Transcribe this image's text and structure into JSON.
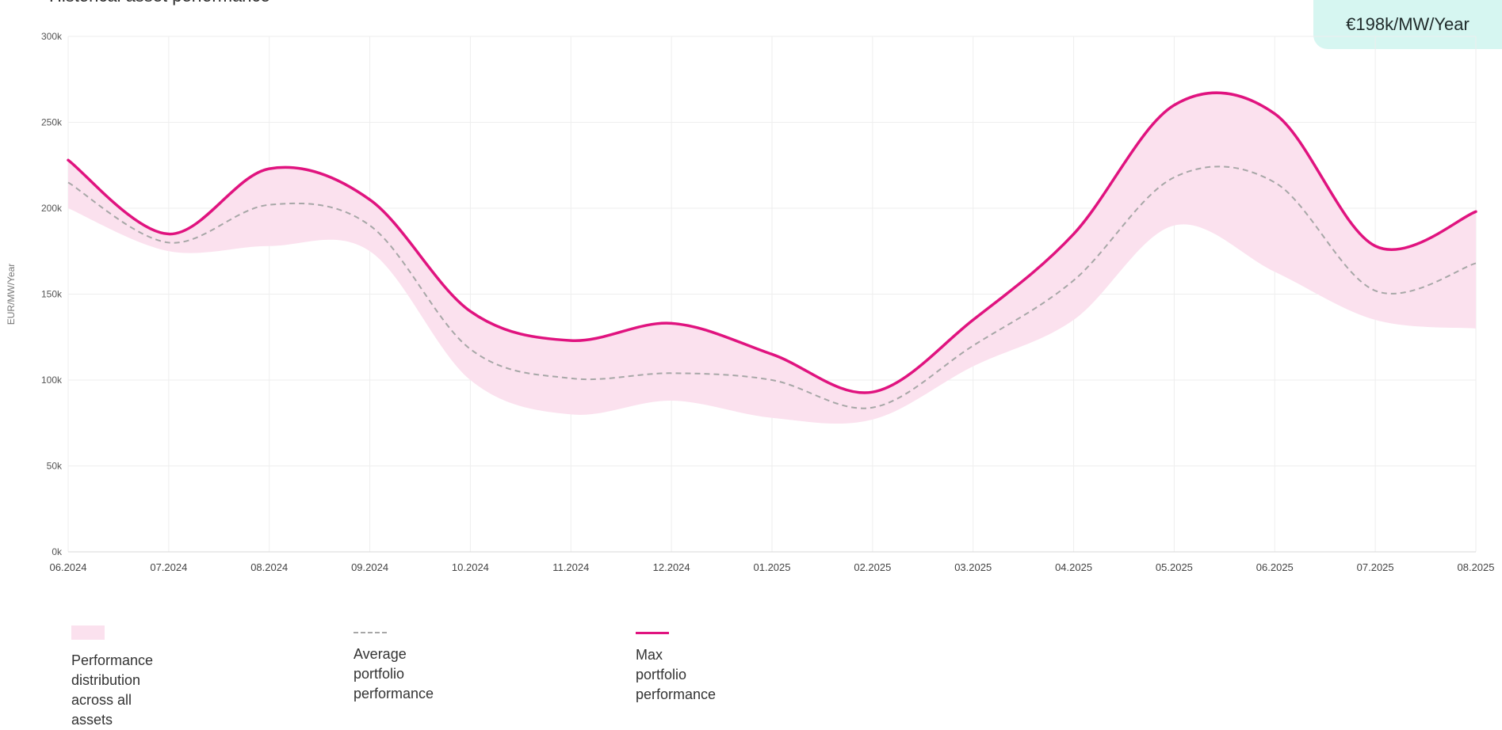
{
  "header": {
    "title": "Historical asset performance",
    "badge": "€198k/MW/Year"
  },
  "legend": {
    "band": "Performance distribution across all assets",
    "band_line1": "Performance distribution",
    "band_line2": "across all assets",
    "avg_line1": "Average portfolio",
    "avg_line2": "performance",
    "max": "Max portfolio performance"
  },
  "colors": {
    "max_line": "#e0137f",
    "band_fill": "#fbe1ee",
    "avg_line": "#a7a7a7",
    "grid": "#eeeeee",
    "badge_bg": "#d6f6f1"
  },
  "chart_data": {
    "type": "area",
    "ylabel": "EUR/MW/Year",
    "xlabel": "",
    "ylim": [
      0,
      300000
    ],
    "yticks": [
      0,
      50000,
      100000,
      150000,
      200000,
      250000,
      300000
    ],
    "ytick_labels": [
      "0k",
      "50k",
      "100k",
      "150k",
      "200k",
      "250k",
      "300k"
    ],
    "categories": [
      "06.2024",
      "07.2024",
      "08.2024",
      "09.2024",
      "10.2024",
      "11.2024",
      "12.2024",
      "01.2025",
      "02.2025",
      "03.2025",
      "04.2025",
      "05.2025",
      "06.2025",
      "07.2025",
      "08.2025"
    ],
    "grid": true,
    "legend_position": "bottom",
    "series": [
      {
        "name": "Max portfolio performance",
        "style": "line",
        "values": [
          228000,
          185000,
          223000,
          205000,
          140000,
          123000,
          133000,
          115000,
          93000,
          135000,
          185000,
          260000,
          255000,
          178000,
          198000
        ]
      },
      {
        "name": "Average portfolio performance",
        "style": "dashed",
        "values": [
          215000,
          180000,
          202000,
          190000,
          118000,
          101000,
          104000,
          100000,
          84000,
          120000,
          158000,
          218000,
          215000,
          152000,
          168000
        ]
      },
      {
        "name": "Performance distribution across all assets",
        "style": "band",
        "lower": [
          200000,
          175000,
          178000,
          175000,
          100000,
          80000,
          88000,
          78000,
          77000,
          108000,
          135000,
          190000,
          163000,
          135000,
          130000
        ],
        "upper": [
          228000,
          185000,
          223000,
          205000,
          140000,
          123000,
          133000,
          115000,
          93000,
          135000,
          185000,
          260000,
          255000,
          178000,
          198000
        ]
      }
    ]
  }
}
